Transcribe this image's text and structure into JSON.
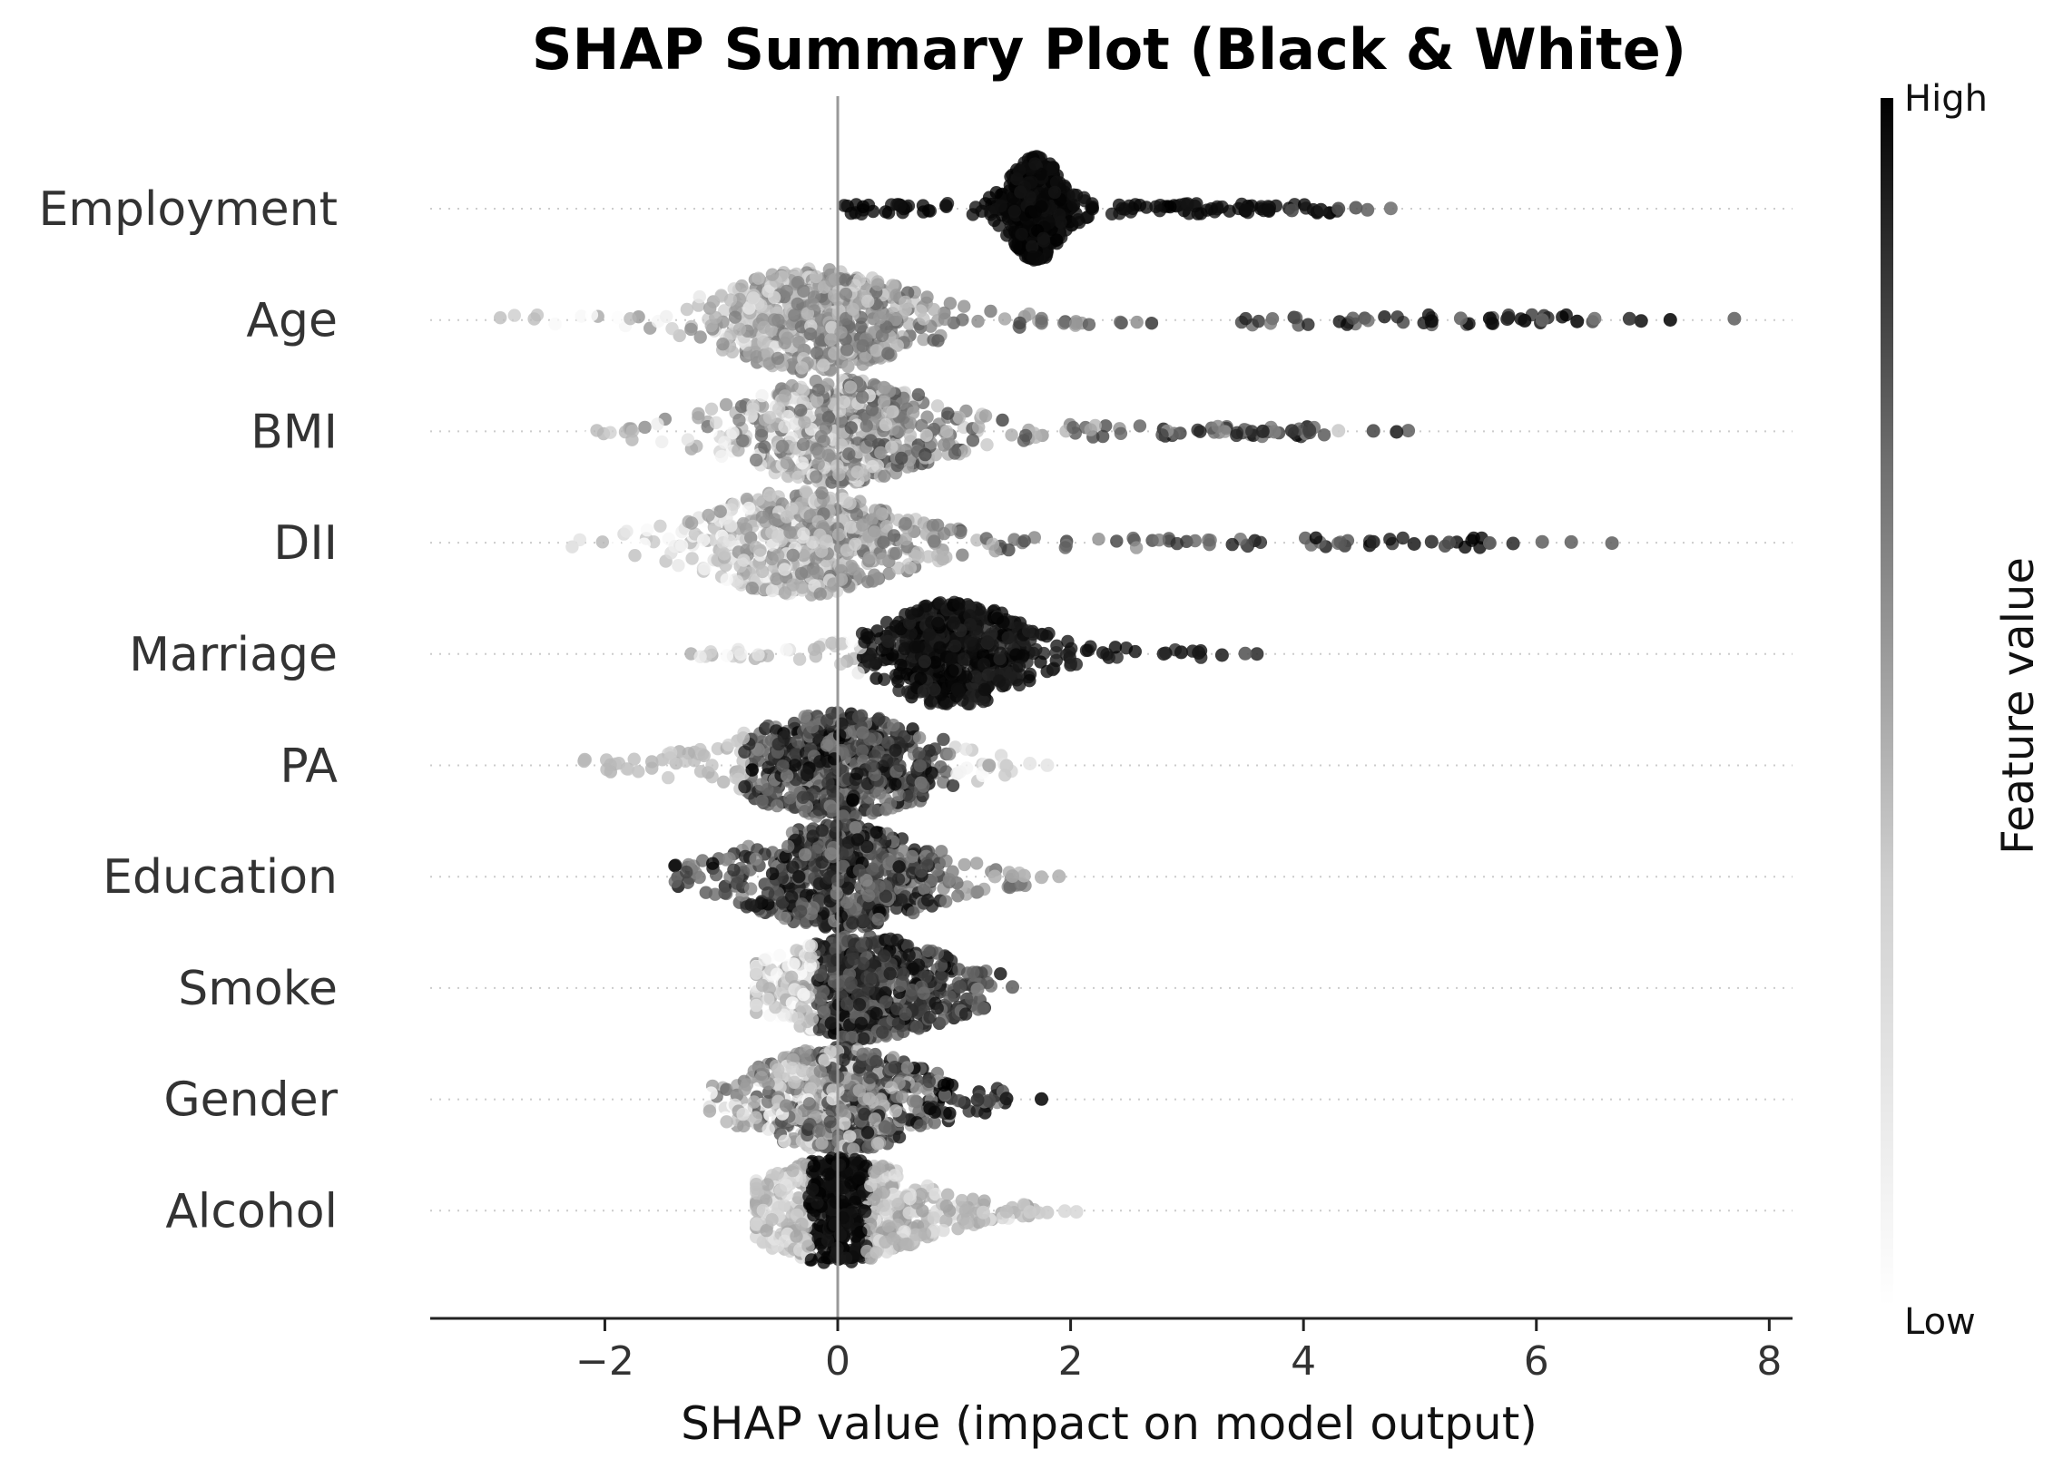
{
  "chart_data": {
    "type": "scatter",
    "subtype": "shap-beeswarm",
    "title": "SHAP Summary Plot (Black & White)",
    "xlabel": "SHAP value (impact on model output)",
    "xlim": [
      -3.5,
      8.2
    ],
    "xticks": [
      -2,
      0,
      2,
      4,
      6,
      8
    ],
    "xtick_labels": [
      "−2",
      "0",
      "2",
      "4",
      "6",
      "8"
    ],
    "zero_line": 0,
    "colorbar": {
      "label": "Feature value",
      "high_label": "High",
      "low_label": "Low",
      "high_color": "#000000",
      "low_color": "#ffffff"
    },
    "features": [
      {
        "name": "Employment",
        "approx_min": 0.0,
        "approx_max": 4.75,
        "median": 1.7,
        "spread": 0.12,
        "sample_points": [
          [
            4.75,
            0.55
          ],
          [
            4.55,
            0.6
          ],
          [
            4.45,
            0.65
          ],
          [
            4.3,
            0.7
          ],
          [
            4.15,
            0.9
          ],
          [
            3.9,
            0.7
          ],
          [
            3.7,
            0.95
          ],
          [
            3.5,
            0.95
          ]
        ]
      },
      {
        "name": "Age",
        "approx_min": -3.0,
        "approx_max": 7.7,
        "median": -0.2,
        "spread": 0.42,
        "sample_points": [
          [
            7.7,
            0.6
          ],
          [
            7.15,
            0.95
          ],
          [
            6.9,
            0.9
          ],
          [
            6.8,
            0.8
          ],
          [
            6.5,
            0.55
          ],
          [
            6.35,
            0.95
          ],
          [
            6.05,
            0.6
          ],
          [
            5.9,
            0.95
          ],
          [
            5.75,
            0.85
          ],
          [
            5.6,
            0.95
          ],
          [
            5.35,
            0.6
          ],
          [
            5.1,
            0.95
          ]
        ]
      },
      {
        "name": "BMI",
        "approx_min": -2.3,
        "approx_max": 4.95,
        "median": 0.0,
        "spread": 0.45,
        "sample_points": [
          [
            4.9,
            0.6
          ],
          [
            4.8,
            0.85
          ],
          [
            4.6,
            0.7
          ],
          [
            4.3,
            0.2
          ],
          [
            4.05,
            0.75
          ],
          [
            3.9,
            0.8
          ],
          [
            3.75,
            0.5
          ],
          [
            3.65,
            0.85
          ]
        ]
      },
      {
        "name": "DII",
        "approx_min": -2.3,
        "approx_max": 6.7,
        "median": -0.3,
        "spread": 0.45,
        "sample_points": [
          [
            6.65,
            0.6
          ],
          [
            6.3,
            0.6
          ],
          [
            6.05,
            0.6
          ],
          [
            5.8,
            0.8
          ],
          [
            5.6,
            0.6
          ],
          [
            5.25,
            0.7
          ],
          [
            5.1,
            0.8
          ],
          [
            4.95,
            0.85
          ],
          [
            4.6,
            0.85
          ]
        ]
      },
      {
        "name": "Marriage",
        "approx_min": -1.3,
        "approx_max": 3.6,
        "median": 1.0,
        "spread": 0.32,
        "sample_points": [
          [
            3.6,
            0.8
          ],
          [
            3.5,
            0.65
          ],
          [
            3.3,
            0.85
          ],
          [
            3.1,
            0.9
          ],
          [
            2.95,
            0.9
          ],
          [
            2.8,
            0.85
          ]
        ]
      },
      {
        "name": "PA",
        "approx_min": -2.2,
        "approx_max": 1.8,
        "median": 0.0,
        "spread": 0.45,
        "sample_points": [
          [
            1.8,
            0.1
          ],
          [
            1.65,
            0.1
          ],
          [
            1.45,
            0.2
          ],
          [
            1.3,
            0.35
          ]
        ]
      },
      {
        "name": "Education",
        "approx_min": -1.4,
        "approx_max": 1.9,
        "median": 0.0,
        "spread": 0.42,
        "sample_points": [
          [
            1.9,
            0.3
          ],
          [
            1.75,
            0.3
          ],
          [
            1.6,
            0.3
          ],
          [
            1.5,
            0.35
          ],
          [
            1.35,
            0.3
          ]
        ]
      },
      {
        "name": "Smoke",
        "approx_min": -0.7,
        "approx_max": 1.5,
        "median": 0.2,
        "spread": 0.42,
        "sample_points": [
          [
            1.5,
            0.6
          ],
          [
            1.2,
            0.5
          ],
          [
            1.05,
            0.7
          ]
        ]
      },
      {
        "name": "Gender",
        "approx_min": -1.1,
        "approx_max": 1.75,
        "median": 0.0,
        "spread": 0.4,
        "sample_points": [
          [
            1.75,
            0.95
          ],
          [
            1.45,
            0.9
          ],
          [
            1.3,
            0.7
          ],
          [
            1.2,
            0.8
          ]
        ]
      },
      {
        "name": "Alcohol",
        "approx_min": -0.7,
        "approx_max": 2.05,
        "median": 0.0,
        "spread": 0.38,
        "sample_points": [
          [
            2.05,
            0.15
          ],
          [
            1.95,
            0.15
          ],
          [
            1.8,
            0.2
          ],
          [
            1.65,
            0.2
          ],
          [
            1.45,
            0.25
          ],
          [
            1.25,
            0.2
          ],
          [
            1.1,
            0.3
          ]
        ]
      }
    ]
  }
}
